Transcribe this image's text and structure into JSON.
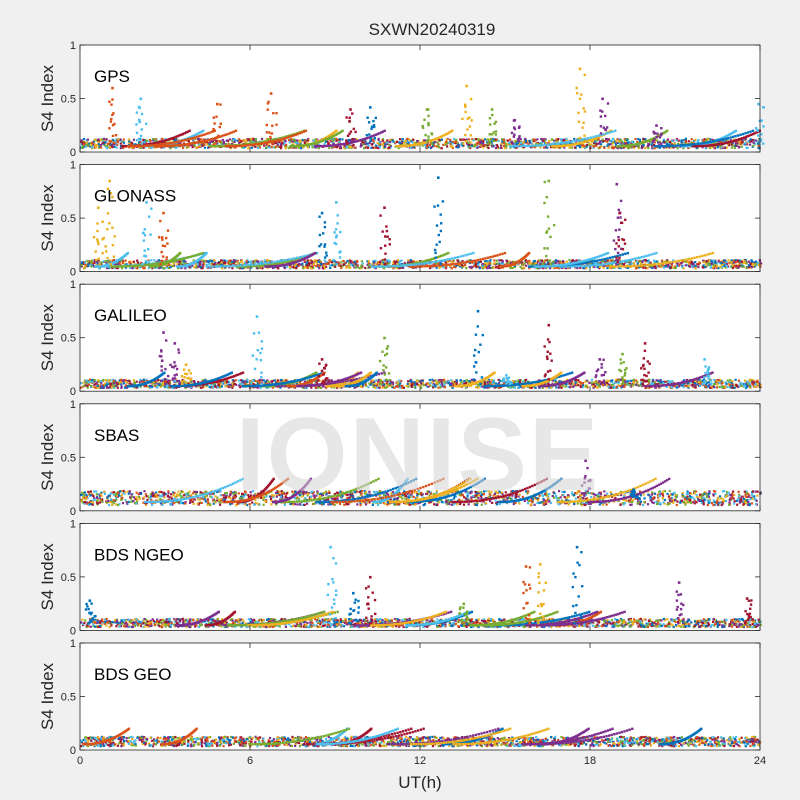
{
  "figure": {
    "title": "SXWN20240319",
    "watermark": "IONISE",
    "background": "#f0f0f0",
    "axes_background": "#ffffff"
  },
  "chart_data": {
    "type": "scatter",
    "title": "SXWN20240319",
    "xlabel": "UT(h)",
    "ylabel": "S4 Index",
    "xlim": [
      0,
      24
    ],
    "ylim": [
      0,
      1
    ],
    "xticks": [
      0,
      6,
      12,
      18,
      24
    ],
    "yticks": [
      0,
      0.5,
      1
    ],
    "grid": false,
    "colors": [
      "#0072bd",
      "#d95319",
      "#edb120",
      "#7e2f8e",
      "#77ac30",
      "#4dbeee",
      "#a2142f"
    ],
    "panels": [
      {
        "label": "GPS",
        "baseline": 0.08,
        "spikes": [
          {
            "x": 1.1,
            "peak": 0.6,
            "color": "#d95319"
          },
          {
            "x": 2.1,
            "peak": 0.5,
            "color": "#4dbeee"
          },
          {
            "x": 4.8,
            "peak": 0.45,
            "color": "#d95319"
          },
          {
            "x": 6.7,
            "peak": 0.55,
            "color": "#d95319"
          },
          {
            "x": 9.5,
            "peak": 0.4,
            "color": "#a2142f"
          },
          {
            "x": 10.2,
            "peak": 0.42,
            "color": "#0072bd"
          },
          {
            "x": 12.2,
            "peak": 0.4,
            "color": "#77ac30"
          },
          {
            "x": 13.6,
            "peak": 0.62,
            "color": "#edb120"
          },
          {
            "x": 14.5,
            "peak": 0.4,
            "color": "#77ac30"
          },
          {
            "x": 15.3,
            "peak": 0.3,
            "color": "#7e2f8e"
          },
          {
            "x": 17.6,
            "peak": 0.78,
            "color": "#edb120"
          },
          {
            "x": 18.4,
            "peak": 0.5,
            "color": "#7e2f8e"
          },
          {
            "x": 20.3,
            "peak": 0.25,
            "color": "#7e2f8e"
          },
          {
            "x": 23.9,
            "peak": 0.45,
            "color": "#4dbeee"
          }
        ]
      },
      {
        "label": "GLONASS",
        "baseline": 0.07,
        "spikes": [
          {
            "x": 0.6,
            "peak": 0.6,
            "color": "#edb120"
          },
          {
            "x": 1.0,
            "peak": 0.85,
            "color": "#edb120"
          },
          {
            "x": 2.3,
            "peak": 0.65,
            "color": "#4dbeee"
          },
          {
            "x": 2.9,
            "peak": 0.55,
            "color": "#d95319"
          },
          {
            "x": 8.5,
            "peak": 0.55,
            "color": "#0072bd"
          },
          {
            "x": 9.0,
            "peak": 0.65,
            "color": "#4dbeee"
          },
          {
            "x": 10.7,
            "peak": 0.6,
            "color": "#a2142f"
          },
          {
            "x": 12.6,
            "peak": 0.88,
            "color": "#0072bd"
          },
          {
            "x": 16.5,
            "peak": 0.85,
            "color": "#77ac30"
          },
          {
            "x": 18.9,
            "peak": 0.82,
            "color": "#7e2f8e"
          },
          {
            "x": 19.0,
            "peak": 0.55,
            "color": "#a2142f"
          }
        ]
      },
      {
        "label": "GALILEO",
        "baseline": 0.07,
        "spikes": [
          {
            "x": 2.9,
            "peak": 0.55,
            "color": "#7e2f8e"
          },
          {
            "x": 3.3,
            "peak": 0.45,
            "color": "#7e2f8e"
          },
          {
            "x": 3.7,
            "peak": 0.25,
            "color": "#edb120"
          },
          {
            "x": 6.2,
            "peak": 0.7,
            "color": "#4dbeee"
          },
          {
            "x": 8.5,
            "peak": 0.3,
            "color": "#a2142f"
          },
          {
            "x": 10.7,
            "peak": 0.5,
            "color": "#77ac30"
          },
          {
            "x": 14.0,
            "peak": 0.75,
            "color": "#0072bd"
          },
          {
            "x": 15.0,
            "peak": 0.15,
            "color": "#4dbeee"
          },
          {
            "x": 16.5,
            "peak": 0.62,
            "color": "#a2142f"
          },
          {
            "x": 18.3,
            "peak": 0.3,
            "color": "#7e2f8e"
          },
          {
            "x": 19.1,
            "peak": 0.35,
            "color": "#77ac30"
          },
          {
            "x": 19.9,
            "peak": 0.45,
            "color": "#a2142f"
          },
          {
            "x": 22.0,
            "peak": 0.3,
            "color": "#4dbeee"
          }
        ]
      },
      {
        "label": "SBAS",
        "baseline": 0.12,
        "spikes": [
          {
            "x": 17.8,
            "peak": 0.47,
            "color": "#7e2f8e"
          },
          {
            "x": 19.5,
            "peak": 0.2,
            "color": "#0072bd"
          }
        ]
      },
      {
        "label": "BDS NGEO",
        "baseline": 0.07,
        "spikes": [
          {
            "x": 0.3,
            "peak": 0.28,
            "color": "#0072bd"
          },
          {
            "x": 8.8,
            "peak": 0.78,
            "color": "#4dbeee"
          },
          {
            "x": 9.6,
            "peak": 0.35,
            "color": "#0072bd"
          },
          {
            "x": 10.2,
            "peak": 0.5,
            "color": "#a2142f"
          },
          {
            "x": 13.5,
            "peak": 0.25,
            "color": "#77ac30"
          },
          {
            "x": 15.7,
            "peak": 0.6,
            "color": "#d95319"
          },
          {
            "x": 16.2,
            "peak": 0.62,
            "color": "#edb120"
          },
          {
            "x": 17.5,
            "peak": 0.78,
            "color": "#0072bd"
          },
          {
            "x": 21.1,
            "peak": 0.45,
            "color": "#7e2f8e"
          },
          {
            "x": 23.5,
            "peak": 0.3,
            "color": "#a2142f"
          }
        ]
      },
      {
        "label": "BDS GEO",
        "baseline": 0.08,
        "spikes": []
      }
    ]
  }
}
